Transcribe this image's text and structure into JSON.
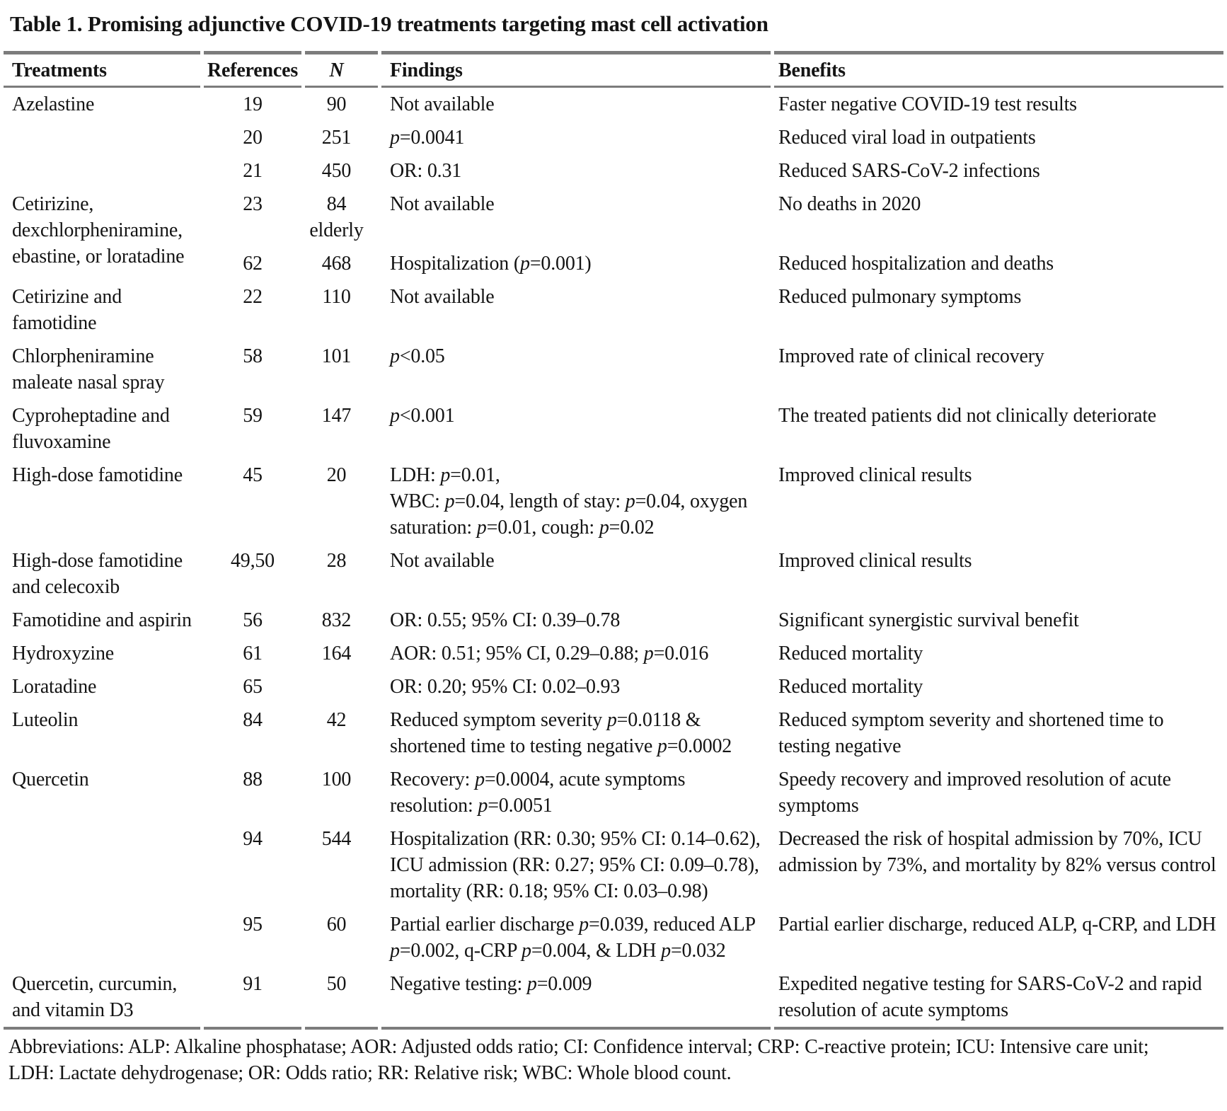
{
  "title": "Table 1. Promising adjunctive COVID-19 treatments targeting mast cell activation",
  "colors": {
    "background": "#ffffff",
    "text": "#141414",
    "rule": "#7c7c7c"
  },
  "table": {
    "columns": [
      "Treatments",
      "References",
      "N",
      "Findings",
      "Benefits"
    ],
    "groups": [
      {
        "treatment": "Azelastine",
        "rows": [
          {
            "reference": "19",
            "n": "90",
            "findings": "Not available",
            "benefits": "Faster negative COVID-19 test results"
          },
          {
            "reference": "20",
            "n": "251",
            "findings": "p=0.0041",
            "benefits": "Reduced viral load in outpatients"
          },
          {
            "reference": "21",
            "n": "450",
            "findings": "OR: 0.31",
            "benefits": "Reduced SARS-CoV-2 infections"
          }
        ]
      },
      {
        "treatment": "Cetirizine,\ndexchlorpheniramine,\nebastine, or loratadine",
        "rows": [
          {
            "reference": "23",
            "n": "84\nelderly",
            "findings": "Not available",
            "benefits": "No deaths in 2020"
          },
          {
            "reference": "62",
            "n": "468",
            "findings": "Hospitalization (p=0.001)",
            "benefits": "Reduced hospitalization and deaths"
          }
        ]
      },
      {
        "treatment": "Cetirizine and\nfamotidine",
        "rows": [
          {
            "reference": "22",
            "n": "110",
            "findings": "Not available",
            "benefits": "Reduced pulmonary symptoms"
          }
        ]
      },
      {
        "treatment": "Chlorpheniramine\nmaleate nasal spray",
        "rows": [
          {
            "reference": "58",
            "n": "101",
            "findings": "p<0.05",
            "benefits": "Improved rate of clinical recovery"
          }
        ]
      },
      {
        "treatment": "Cyproheptadine and\nfluvoxamine",
        "rows": [
          {
            "reference": "59",
            "n": "147",
            "findings": "p<0.001",
            "benefits": "The treated patients did not clinically deteriorate"
          }
        ]
      },
      {
        "treatment": "High-dose famotidine",
        "rows": [
          {
            "reference": "45",
            "n": "20",
            "findings": "LDH: p=0.01,\nWBC: p=0.04, length of stay: p=0.04, oxygen\nsaturation: p=0.01, cough: p=0.02",
            "benefits": "Improved clinical results"
          }
        ]
      },
      {
        "treatment": "High-dose famotidine\nand celecoxib",
        "rows": [
          {
            "reference": "49,50",
            "n": "28",
            "findings": "Not available",
            "benefits": "Improved clinical results"
          }
        ]
      },
      {
        "treatment": "Famotidine and aspirin",
        "rows": [
          {
            "reference": "56",
            "n": "832",
            "findings": "OR: 0.55; 95% CI: 0.39–0.78",
            "benefits": "Significant synergistic survival benefit"
          }
        ]
      },
      {
        "treatment": "Hydroxyzine",
        "rows": [
          {
            "reference": "61",
            "n": "164",
            "findings": "AOR: 0.51; 95% CI, 0.29–0.88; p=0.016",
            "benefits": "Reduced mortality"
          }
        ]
      },
      {
        "treatment": "Loratadine",
        "rows": [
          {
            "reference": "65",
            "n": "",
            "findings": "OR: 0.20; 95% CI: 0.02–0.93",
            "benefits": "Reduced mortality"
          }
        ]
      },
      {
        "treatment": "Luteolin",
        "rows": [
          {
            "reference": "84",
            "n": "42",
            "findings": "Reduced symptom severity p=0.0118 &\nshortened time to testing negative p=0.0002",
            "benefits": "Reduced symptom severity and shortened time to\ntesting negative"
          }
        ]
      },
      {
        "treatment": "Quercetin",
        "rows": [
          {
            "reference": "88",
            "n": "100",
            "findings": "Recovery: p=0.0004, acute symptoms\nresolution: p=0.0051",
            "benefits": "Speedy recovery and improved resolution of acute\nsymptoms"
          },
          {
            "reference": "94",
            "n": "544",
            "findings": "Hospitalization (RR: 0.30; 95% CI: 0.14–0.62),\nICU admission (RR: 0.27; 95% CI: 0.09–0.78),\nmortality (RR: 0.18; 95% CI: 0.03–0.98)",
            "benefits": "Decreased the risk of hospital admission by 70%, ICU\nadmission by 73%, and mortality by 82% versus control"
          },
          {
            "reference": "95",
            "n": "60",
            "findings": "Partial earlier discharge p=0.039, reduced ALP\np=0.002, q-CRP p=0.004, & LDH p=0.032",
            "benefits": "Partial earlier discharge, reduced ALP, q-CRP, and LDH"
          }
        ]
      },
      {
        "treatment": "Quercetin, curcumin,\nand vitamin D3",
        "rows": [
          {
            "reference": "91",
            "n": "50",
            "findings": "Negative testing: p=0.009",
            "benefits": "Expedited negative testing for SARS-CoV-2 and rapid\nresolution of acute symptoms"
          }
        ]
      }
    ]
  },
  "footnote": "Abbreviations: ALP: Alkaline phosphatase; AOR: Adjusted odds ratio; CI: Confidence interval; CRP: C-reactive protein; ICU: Intensive care unit;\nLDH: Lactate dehydrogenase; OR: Odds ratio; RR: Relative risk; WBC: Whole blood count."
}
